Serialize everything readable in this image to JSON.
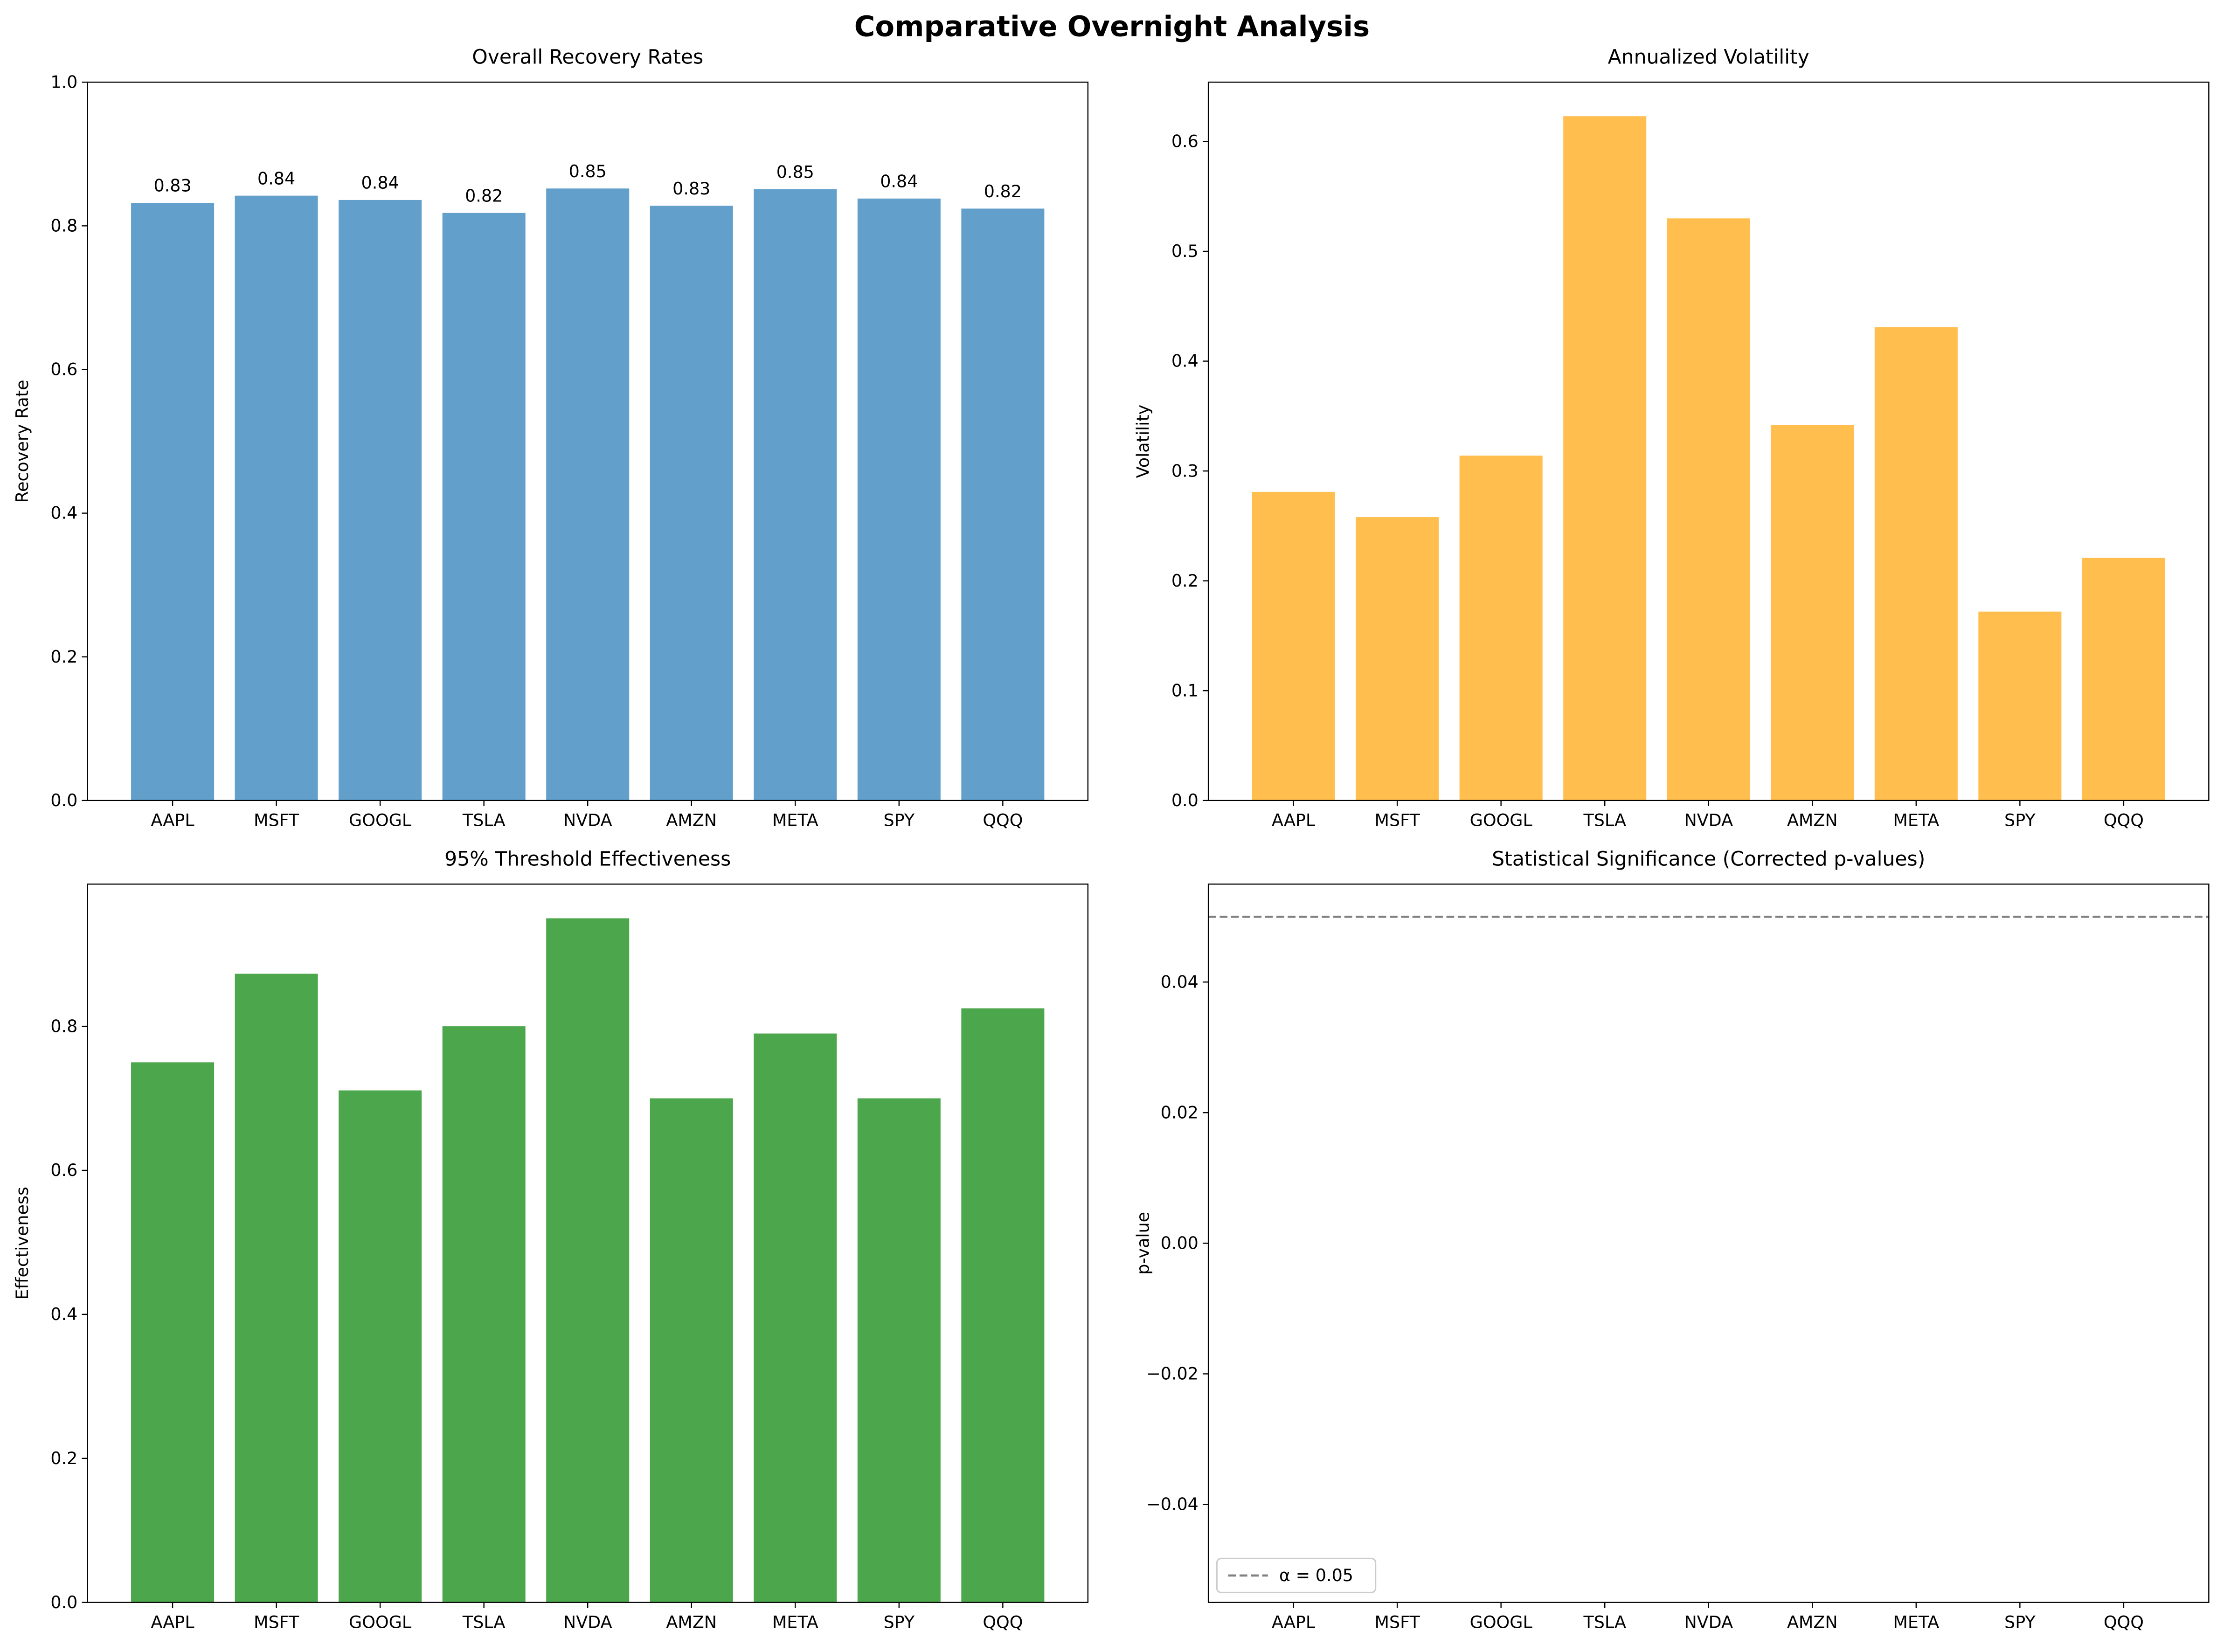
{
  "title": "Comparative Overnight Analysis",
  "chart_data": [
    {
      "type": "bar",
      "title": "Overall Recovery Rates",
      "ylabel": "Recovery Rate",
      "categories": [
        "AAPL",
        "MSFT",
        "GOOGL",
        "TSLA",
        "NVDA",
        "AMZN",
        "META",
        "SPY",
        "QQQ"
      ],
      "values": [
        0.832,
        0.842,
        0.836,
        0.818,
        0.852,
        0.828,
        0.851,
        0.838,
        0.824
      ],
      "value_labels": [
        "0.83",
        "0.84",
        "0.84",
        "0.82",
        "0.85",
        "0.83",
        "0.85",
        "0.84",
        "0.82"
      ],
      "color": "#62a0cb",
      "ylim": [
        0,
        1
      ],
      "yticks": [
        {
          "value": 0,
          "label": "0.0"
        },
        0.2,
        0.4,
        0.6,
        0.8,
        {
          "value": 1,
          "label": "1.0"
        }
      ]
    },
    {
      "type": "bar",
      "title": "Annualized Volatility",
      "ylabel": "Volatility",
      "categories": [
        "AAPL",
        "MSFT",
        "GOOGL",
        "TSLA",
        "NVDA",
        "AMZN",
        "META",
        "SPY",
        "QQQ"
      ],
      "values": [
        0.281,
        0.258,
        0.314,
        0.623,
        0.53,
        0.342,
        0.431,
        0.172,
        0.221
      ],
      "color": "#ffbe4d",
      "ylim": [
        0,
        0.654
      ],
      "yticks": [
        {
          "value": 0,
          "label": "0.0"
        },
        0.1,
        0.2,
        0.3,
        0.4,
        0.5,
        0.6
      ]
    },
    {
      "type": "bar",
      "title": "95% Threshold Effectiveness",
      "ylabel": "Effectiveness",
      "categories": [
        "AAPL",
        "MSFT",
        "GOOGL",
        "TSLA",
        "NVDA",
        "AMZN",
        "META",
        "SPY",
        "QQQ"
      ],
      "values": [
        0.75,
        0.873,
        0.711,
        0.8,
        0.95,
        0.7,
        0.79,
        0.7,
        0.825
      ],
      "color": "#4ca64c",
      "ylim": [
        0,
        0.9975
      ],
      "yticks": [
        {
          "value": 0,
          "label": "0.0"
        },
        0.2,
        0.4,
        0.6,
        0.8
      ]
    },
    {
      "type": "bar",
      "title": "Statistical Significance (Corrected p-values)",
      "ylabel": "p-value",
      "categories": [
        "AAPL",
        "MSFT",
        "GOOGL",
        "TSLA",
        "NVDA",
        "AMZN",
        "META",
        "SPY",
        "QQQ"
      ],
      "ylim": [
        -0.055,
        0.055
      ],
      "yticks": [
        {
          "value": -0.04,
          "label": "−0.04"
        },
        {
          "value": -0.02,
          "label": "−0.02"
        },
        {
          "value": 0,
          "label": "0.00"
        },
        0.02,
        0.04
      ],
      "hline": {
        "value": 0.05,
        "label": "α = 0.05",
        "color": "#808080"
      },
      "legend": "lower left"
    }
  ]
}
